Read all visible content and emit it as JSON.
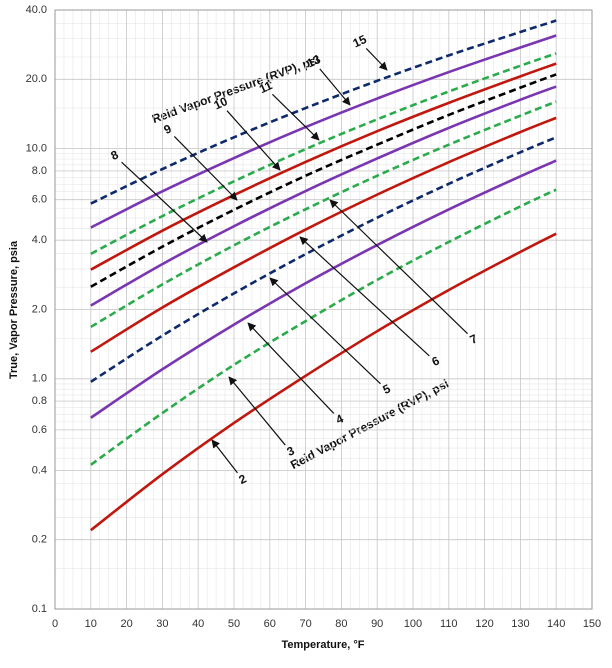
{
  "chart_data": {
    "type": "line",
    "x_label": "Temperature, °F",
    "y_label": "True, Vapor Pressure, psia",
    "annotations": [
      "Reid Vapor Pressure (RVP), psi",
      "Reid Vapor Pressure (RVP), psi"
    ],
    "log_y": true,
    "grid": true,
    "xlim": [
      0,
      150
    ],
    "xticks": [
      0,
      10,
      20,
      30,
      40,
      50,
      60,
      70,
      80,
      90,
      100,
      110,
      120,
      130,
      140,
      150
    ],
    "ylim": [
      0.1,
      40
    ],
    "yticks": [
      0.1,
      0.2,
      0.4,
      0.6,
      0.8,
      {
        "value": 1,
        "label": "1.0"
      },
      {
        "value": 2,
        "label": "2.0"
      },
      {
        "value": 4,
        "label": "4.0"
      },
      {
        "value": 6,
        "label": "6.0"
      },
      {
        "value": 8,
        "label": "8.0"
      },
      {
        "value": 10,
        "label": "10.0"
      },
      {
        "value": 20,
        "label": "20.0"
      },
      {
        "value": 40,
        "label": "40.0"
      }
    ],
    "x": [
      10,
      30,
      50,
      70,
      90,
      110,
      130,
      140
    ],
    "series": [
      {
        "name": "2",
        "color": "#c0180e",
        "dashed": false,
        "values": [
          0.22,
          0.385,
          0.643,
          1.03,
          1.61,
          2.43,
          3.56,
          4.27
        ]
      },
      {
        "name": "3",
        "color": "#2bab4c",
        "dashed": true,
        "values": [
          0.423,
          0.71,
          1.15,
          1.78,
          2.69,
          3.93,
          5.61,
          6.63
        ]
      },
      {
        "name": "4",
        "color": "#7a36b1",
        "dashed": false,
        "values": [
          0.677,
          1.1,
          1.72,
          2.6,
          3.81,
          5.44,
          7.58,
          8.87
        ]
      },
      {
        "name": "5",
        "color": "#0e2a6c",
        "dashed": true,
        "values": [
          0.97,
          1.54,
          2.35,
          3.48,
          5.01,
          7.03,
          9.64,
          11.2
        ]
      },
      {
        "name": "6",
        "color": "#c0180e",
        "dashed": false,
        "values": [
          1.31,
          2.04,
          3.05,
          4.45,
          6.31,
          8.73,
          11.8,
          13.6
        ]
      },
      {
        "name": "7",
        "color": "#2bab4c",
        "dashed": true,
        "values": [
          1.68,
          2.57,
          3.8,
          5.45,
          7.62,
          10.4,
          13.9,
          16.0
        ]
      },
      {
        "name": "8",
        "color": "#7a36b1",
        "dashed": false,
        "values": [
          2.08,
          3.15,
          4.6,
          6.54,
          9.06,
          12.3,
          16.3,
          18.6
        ]
      },
      {
        "name": "9",
        "color": "#000000",
        "dashed": true,
        "values": [
          2.51,
          3.75,
          5.42,
          7.62,
          10.4,
          14.0,
          18.4,
          21.0
        ]
      },
      {
        "name": "10",
        "color": "#c0180e",
        "dashed": false,
        "values": [
          2.98,
          4.4,
          6.28,
          8.75,
          11.9,
          15.8,
          20.6,
          23.4
        ]
      },
      {
        "name": "11",
        "color": "#2bab4c",
        "dashed": true,
        "values": [
          3.49,
          5.09,
          7.21,
          9.95,
          13.4,
          17.7,
          22.9,
          25.9
        ]
      },
      {
        "name": "13",
        "color": "#7a36b1",
        "dashed": false,
        "values": [
          4.54,
          6.52,
          9.1,
          12.4,
          16.5,
          21.5,
          27.5,
          31.0
        ]
      },
      {
        "name": "15",
        "color": "#0e2a6c",
        "dashed": true,
        "values": [
          5.77,
          8.15,
          11.2,
          15.0,
          19.7,
          25.4,
          32.1,
          36.0
        ]
      }
    ]
  }
}
